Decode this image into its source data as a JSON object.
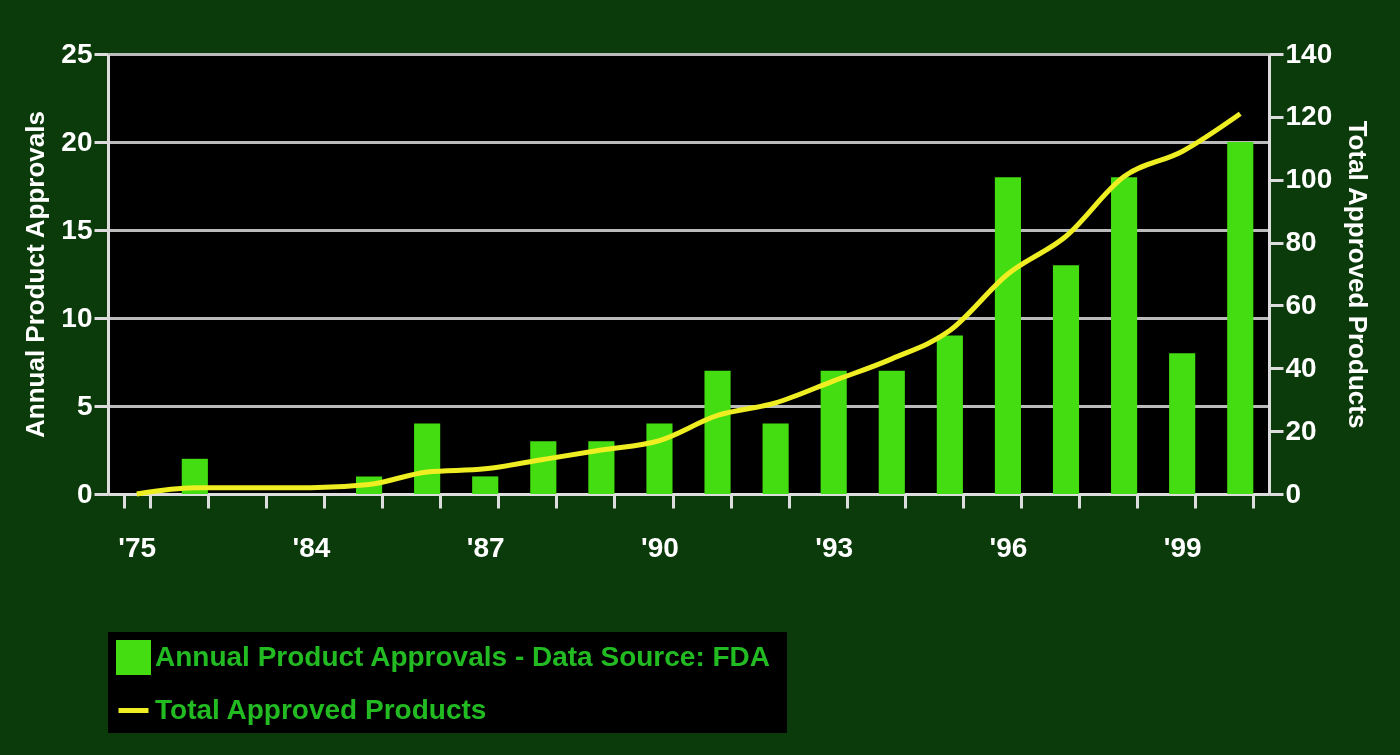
{
  "chart_data": {
    "type": "bar",
    "ylabel": "Annual Product Approvals",
    "y2label": "Total Approved Products",
    "categories": [
      "'75",
      null,
      null,
      "'84",
      null,
      null,
      "'87",
      null,
      null,
      "'90",
      null,
      null,
      "'93",
      null,
      null,
      "'96",
      null,
      null,
      "'99",
      null
    ],
    "series": [
      {
        "name": "Annual Product Approvals - Data Source:  FDA",
        "color": "#44dd11",
        "values": [
          0,
          2,
          0,
          0,
          1,
          4,
          1,
          3,
          3,
          4,
          7,
          4,
          7,
          7,
          9,
          18,
          13,
          18,
          8,
          20
        ]
      },
      {
        "name": "Total Approved Products",
        "type": "line",
        "axis": "y2",
        "color": "#eeee22",
        "values": [
          0,
          2,
          2,
          2,
          3,
          7,
          8,
          11,
          14,
          17,
          25,
          29,
          36,
          43,
          52,
          70,
          82,
          101,
          109,
          121
        ]
      }
    ],
    "ylim": [
      0,
      25
    ],
    "yticks": [
      0,
      5,
      10,
      15,
      20,
      25
    ],
    "y2lim": [
      0,
      140
    ],
    "y2ticks": [
      0,
      20,
      40,
      60,
      80,
      100,
      120,
      140
    ],
    "grid": "y",
    "legend": "bottom"
  }
}
